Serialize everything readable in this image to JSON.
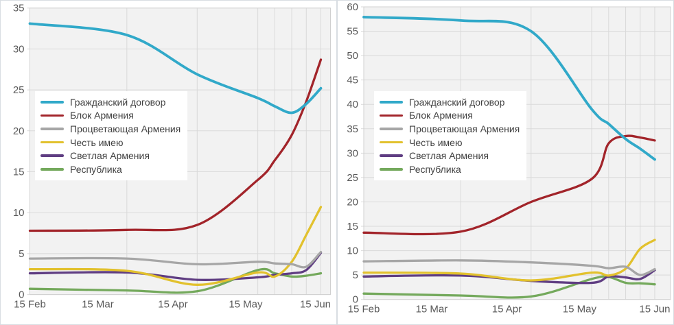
{
  "colors": {
    "plot_background": "#f2f2f2",
    "gridline": "#d9d9d9",
    "plot_border": "#d0d0d0",
    "axis_label": "#595959",
    "legend_text": "#404040",
    "panel_border": "#d8dde2"
  },
  "chart_data": [
    {
      "type": "line",
      "title": "",
      "xlabel": "",
      "ylabel": "",
      "x_tick_labels": [
        "15 Feb",
        "15 Mar",
        "15 Apr",
        "15 May",
        "15 Jun"
      ],
      "x_tick_days": [
        0,
        28,
        59,
        89,
        120
      ],
      "x_days_from_feb15": [
        0,
        40,
        69,
        94,
        101,
        108,
        114,
        120
      ],
      "ylim": [
        0,
        35
      ],
      "y_tick_step": 5,
      "grid": "on",
      "legend_position": "inside-left",
      "series": [
        {
          "name": "Гражданский договор",
          "color": "#31a9c9",
          "values": [
            33.1,
            31.7,
            26.9,
            24.0,
            23.0,
            22.2,
            23.3,
            25.2
          ]
        },
        {
          "name": "Блок Армения",
          "color": "#a2242a",
          "values": [
            7.8,
            7.9,
            8.5,
            14.0,
            16.4,
            19.5,
            23.6,
            28.7
          ]
        },
        {
          "name": "Процветающая Армения",
          "color": "#a6a6a6",
          "values": [
            4.4,
            4.4,
            3.7,
            4.0,
            3.8,
            3.7,
            3.4,
            5.2
          ]
        },
        {
          "name": "Честь имею",
          "color": "#e2c12d",
          "values": [
            3.1,
            2.9,
            1.2,
            2.7,
            2.2,
            4.0,
            7.3,
            10.7
          ]
        },
        {
          "name": "Светлая Армения",
          "color": "#5f3d82",
          "values": [
            2.6,
            2.7,
            1.8,
            2.1,
            2.4,
            2.6,
            3.0,
            5.1
          ]
        },
        {
          "name": "Республика",
          "color": "#74a95c",
          "values": [
            0.7,
            0.5,
            0.4,
            3.0,
            2.6,
            2.2,
            2.3,
            2.6
          ]
        }
      ]
    },
    {
      "type": "line",
      "title": "",
      "xlabel": "",
      "ylabel": "",
      "x_tick_labels": [
        "15 Feb",
        "15 Mar",
        "15 Apr",
        "15 May",
        "15 Jun"
      ],
      "x_tick_days": [
        0,
        28,
        59,
        89,
        120
      ],
      "x_days_from_feb15": [
        0,
        40,
        69,
        94,
        101,
        108,
        114,
        120
      ],
      "ylim": [
        0,
        60
      ],
      "y_tick_step": 5,
      "grid": "on",
      "legend_position": "inside-left",
      "series": [
        {
          "name": "Гражданский договор",
          "color": "#31a9c9",
          "values": [
            57.9,
            57.2,
            55.0,
            39.0,
            36.0,
            32.9,
            30.9,
            28.7
          ]
        },
        {
          "name": "Блок Армения",
          "color": "#a2242a",
          "values": [
            13.7,
            13.9,
            20.0,
            24.7,
            32.0,
            33.5,
            33.2,
            32.6
          ]
        },
        {
          "name": "Процветающая Армения",
          "color": "#a6a6a6",
          "values": [
            7.8,
            8.0,
            7.6,
            6.9,
            6.4,
            6.7,
            5.0,
            6.2
          ]
        },
        {
          "name": "Честь имею",
          "color": "#e2c12d",
          "values": [
            5.5,
            5.3,
            3.9,
            5.5,
            4.9,
            6.3,
            10.4,
            12.2
          ]
        },
        {
          "name": "Светлая Армения",
          "color": "#5f3d82",
          "values": [
            4.7,
            4.9,
            3.8,
            3.4,
            4.7,
            4.5,
            4.2,
            6.0
          ]
        },
        {
          "name": "Республика",
          "color": "#74a95c",
          "values": [
            1.2,
            0.8,
            0.6,
            4.2,
            4.6,
            3.4,
            3.3,
            3.1
          ]
        }
      ]
    }
  ]
}
